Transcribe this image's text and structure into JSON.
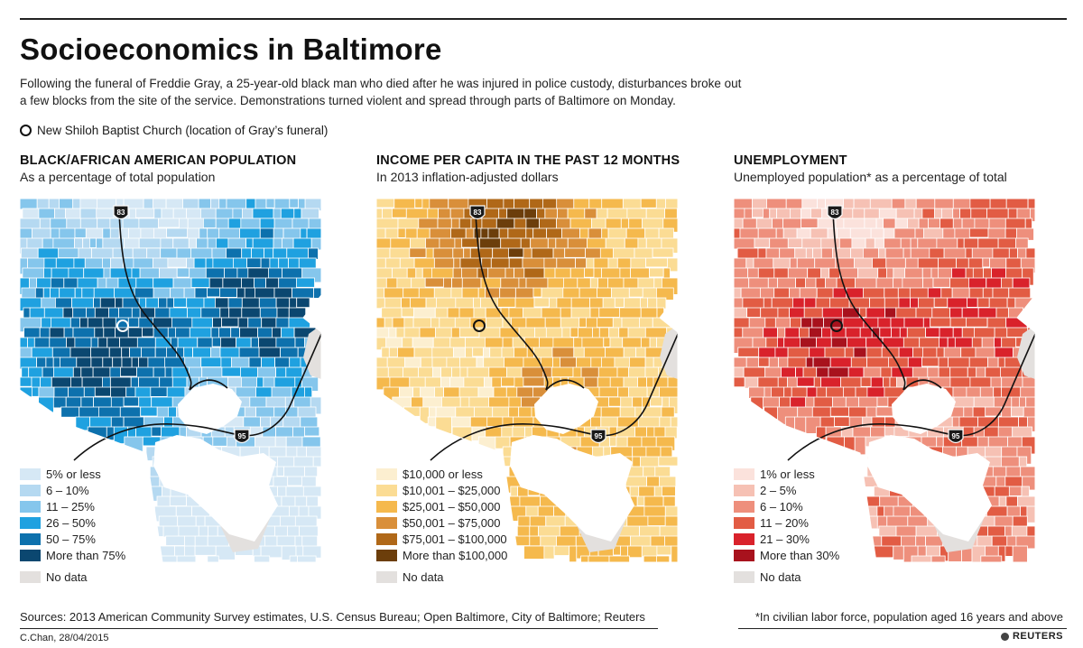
{
  "title": "Socioeconomics in Baltimore",
  "intro": "Following the funeral of Freddie Gray, a 25-year-old black man who died after he was injured in police custody, disturbances broke out a few blocks from the site of the service. Demonstrations turned violent and spread through parts of Baltimore on Monday.",
  "church_label": "New Shiloh Baptist Church (location of Gray’s funeral)",
  "no_data_label": "No data",
  "no_data_color": "#e3e0de",
  "road_labels": {
    "north": "83",
    "south": "95"
  },
  "panels": [
    {
      "title": "BLACK/AFRICAN AMERICAN POPULATION",
      "subtitle": "As a percentage of total population",
      "legend": [
        {
          "label": "5% or less",
          "color": "#d6e8f5"
        },
        {
          "label": "6 – 10%",
          "color": "#b5d9f1"
        },
        {
          "label": "11 – 25%",
          "color": "#85c6ec"
        },
        {
          "label": "26 – 50%",
          "color": "#1fa1e0"
        },
        {
          "label": "50 – 75%",
          "color": "#0d71ad"
        },
        {
          "label": "More than 75%",
          "color": "#0b4770"
        }
      ]
    },
    {
      "title": "INCOME PER CAPITA IN THE PAST 12 MONTHS",
      "subtitle": "In 2013 inflation-adjusted dollars",
      "legend": [
        {
          "label": "$10,000 or less",
          "color": "#fcefd0"
        },
        {
          "label": "$10,001 – $25,000",
          "color": "#fbdc94"
        },
        {
          "label": "$25,001 – $50,000",
          "color": "#f5b94d"
        },
        {
          "label": "$50,001 – $75,000",
          "color": "#d98f3a"
        },
        {
          "label": "$75,001 – $100,000",
          "color": "#b06818"
        },
        {
          "label": "More than $100,000",
          "color": "#6c3e0b"
        }
      ]
    },
    {
      "title": "UNEMPLOYMENT",
      "subtitle": "Unemployed population* as a percentage of total",
      "legend": [
        {
          "label": "1% or less",
          "color": "#fbe2dc"
        },
        {
          "label": "2 – 5%",
          "color": "#f6c1b4"
        },
        {
          "label": "6 – 10%",
          "color": "#ee8f7c"
        },
        {
          "label": "11 – 20%",
          "color": "#e25c44"
        },
        {
          "label": "21 – 30%",
          "color": "#d9222b"
        },
        {
          "label": "More than 30%",
          "color": "#a8121d"
        }
      ]
    }
  ],
  "sources": "Sources: 2013 American Community Survey estimates, U.S. Census Bureau; Open Baltimore, City of Baltimore; Reuters",
  "footnote": "*In civilian labor force, population aged 16 years and above",
  "credit": "C.Chan,  28/04/2015",
  "brand": "REUTERS"
}
